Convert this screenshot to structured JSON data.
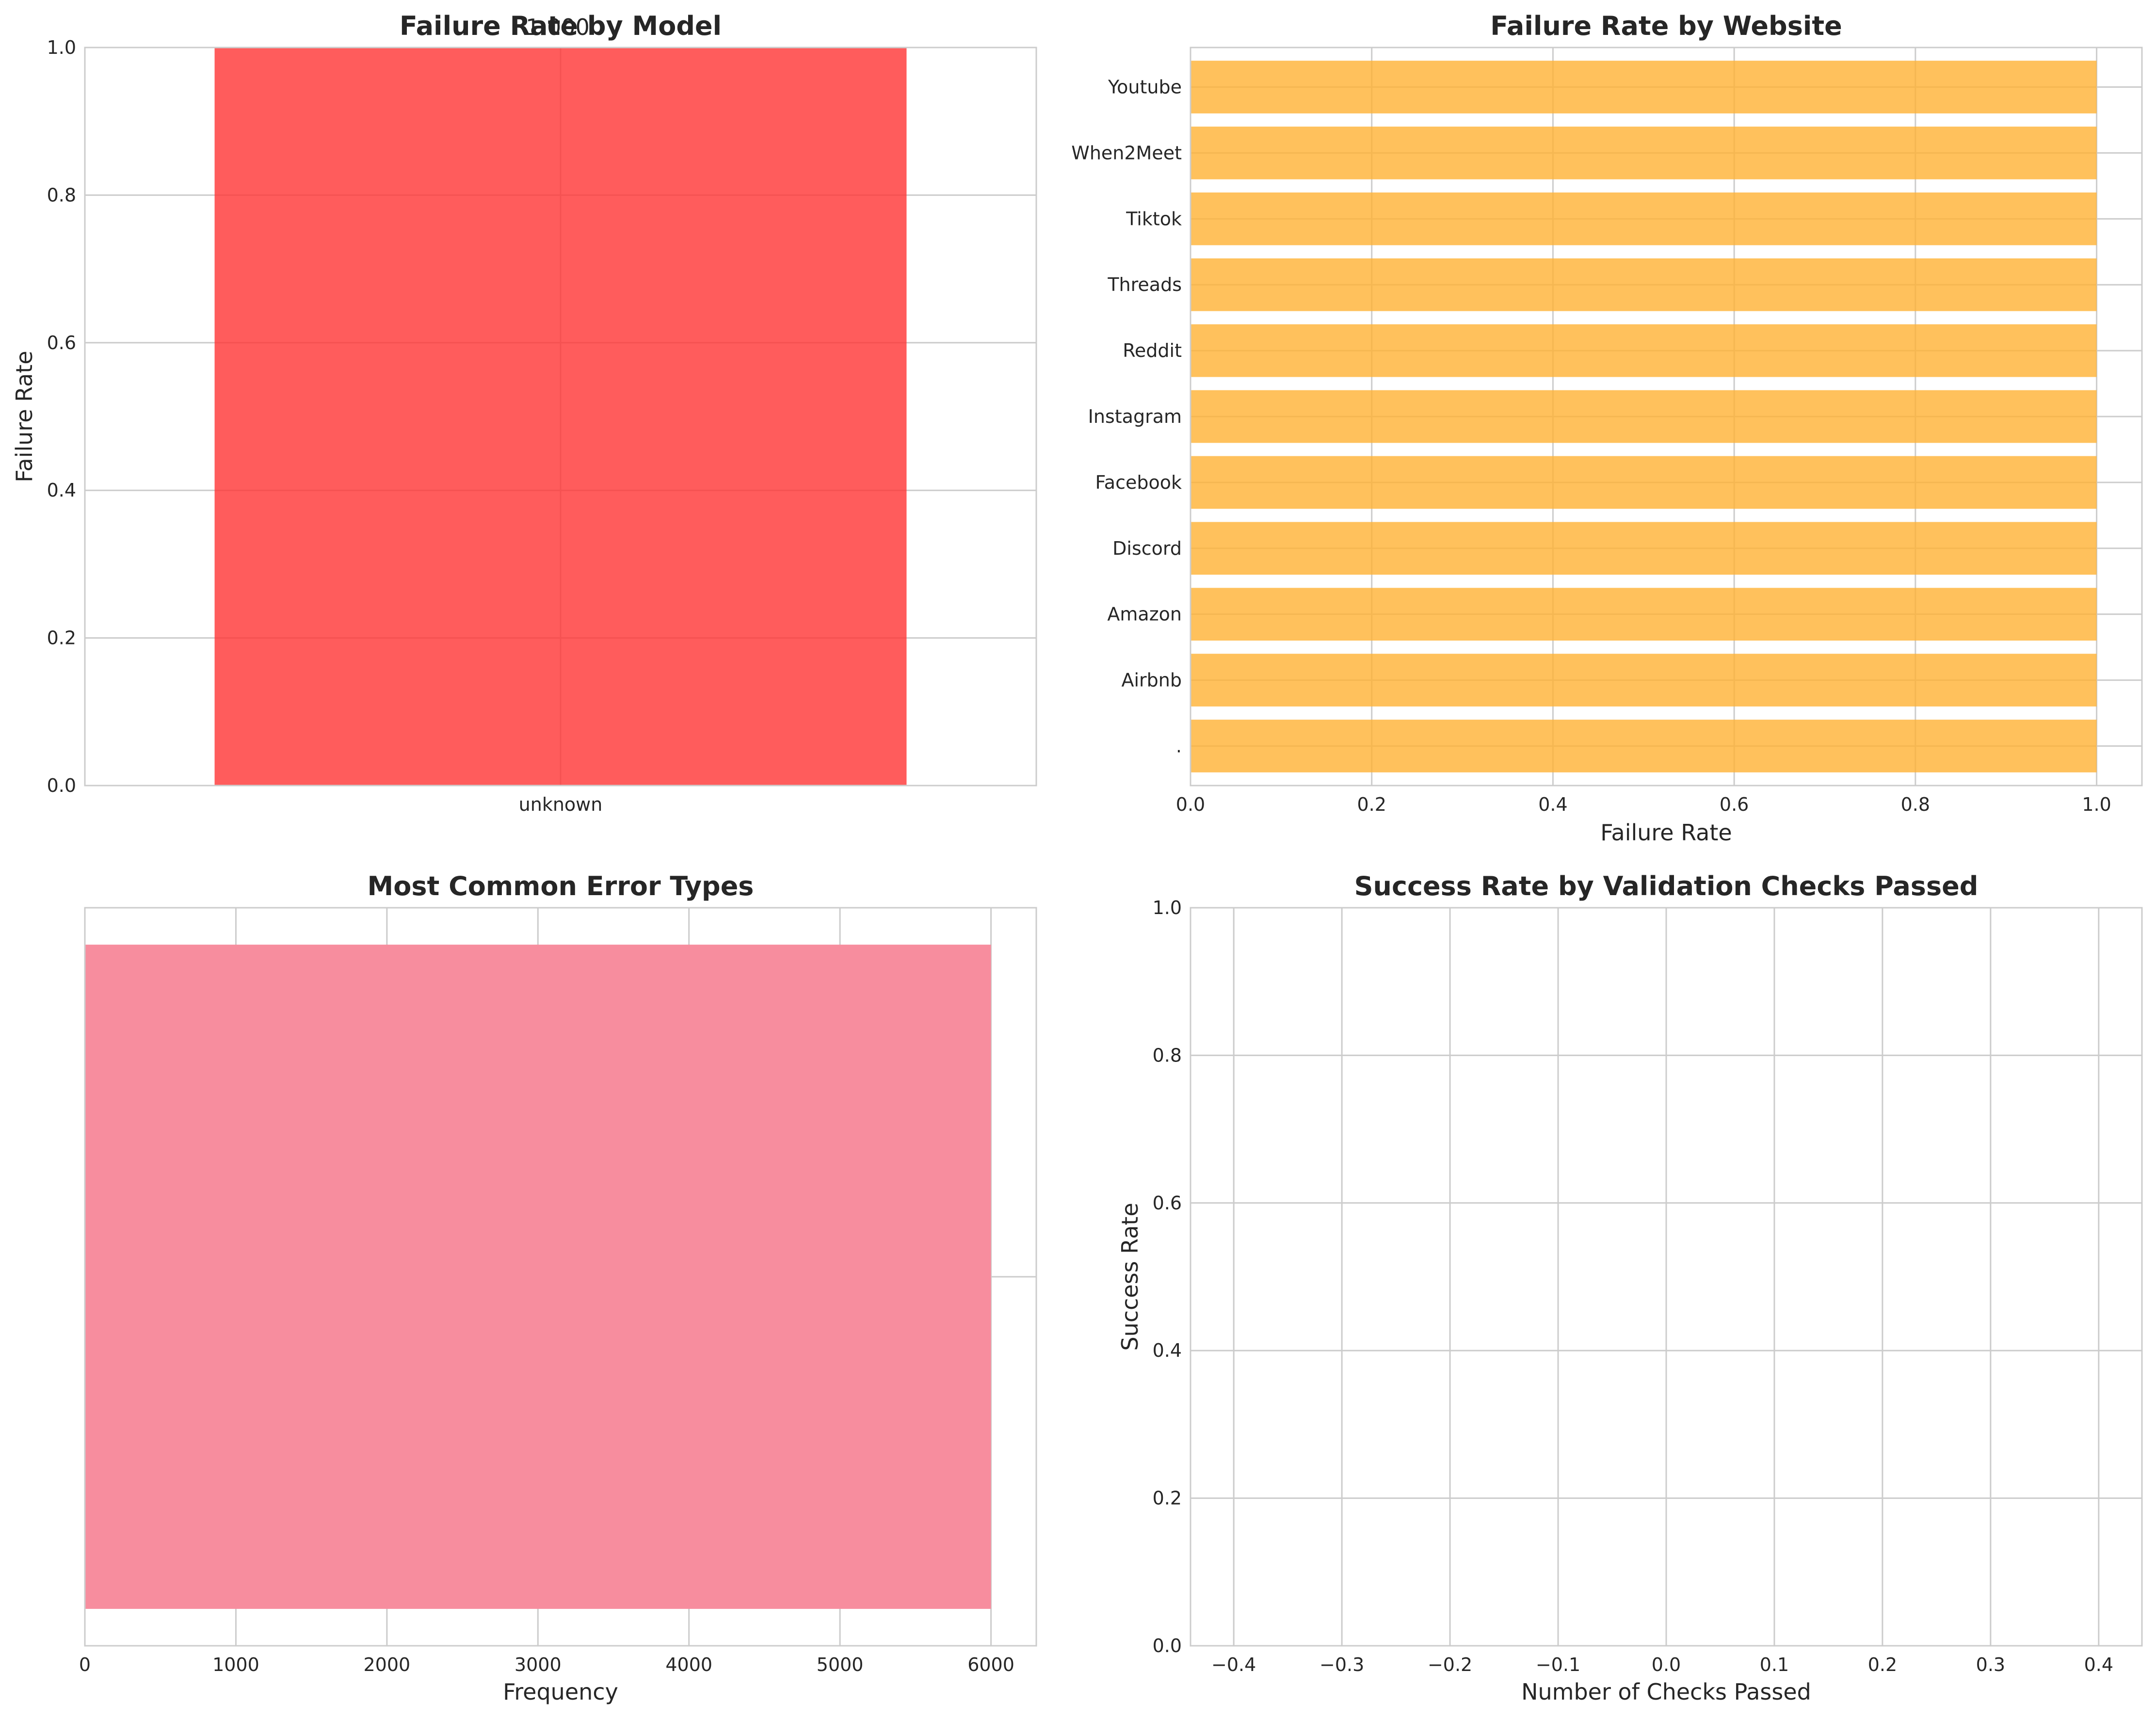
{
  "chart_data": [
    {
      "type": "bar",
      "title": "Failure Rate by Model",
      "xlabel": "",
      "ylabel": "Failure Rate",
      "categories": [
        "unknown"
      ],
      "values": [
        1.0
      ],
      "data_labels": [
        "1.000"
      ],
      "ylim": [
        0,
        1
      ],
      "yticks": [
        "0.0",
        "0.2",
        "0.4",
        "0.6",
        "0.8",
        "1.0"
      ],
      "color": "#ff3333",
      "grid": true
    },
    {
      "type": "bar",
      "orientation": "horizontal",
      "title": "Failure Rate by Website",
      "xlabel": "Failure Rate",
      "ylabel": "",
      "categories": [
        ".",
        "Airbnb",
        "Amazon",
        "Discord",
        "Facebook",
        "Instagram",
        "Reddit",
        "Threads",
        "Tiktok",
        "When2Meet",
        "Youtube"
      ],
      "values": [
        1.0,
        1.0,
        1.0,
        1.0,
        1.0,
        1.0,
        1.0,
        1.0,
        1.0,
        1.0,
        1.0
      ],
      "xlim": [
        0,
        1.05
      ],
      "xticks": [
        "0.0",
        "0.2",
        "0.4",
        "0.6",
        "0.8",
        "1.0"
      ],
      "color": "#ffb133",
      "grid": true
    },
    {
      "type": "bar",
      "orientation": "horizontal",
      "title": "Most Common Error Types",
      "xlabel": "Frequency",
      "ylabel": "",
      "categories": [
        ""
      ],
      "values": [
        6000
      ],
      "xlim": [
        0,
        6300
      ],
      "xticks": [
        "0",
        "1000",
        "2000",
        "3000",
        "4000",
        "5000",
        "6000"
      ],
      "color": "#f78d9e",
      "grid": true
    },
    {
      "type": "line",
      "title": "Success Rate by Validation Checks Passed",
      "xlabel": "Number of Checks Passed",
      "ylabel": "Success Rate",
      "x": [],
      "y": [],
      "xlim": [
        -0.44,
        0.44
      ],
      "ylim": [
        0,
        1
      ],
      "xticks": [
        "−0.4",
        "−0.3",
        "−0.2",
        "−0.1",
        "0.0",
        "0.1",
        "0.2",
        "0.3",
        "0.4"
      ],
      "yticks": [
        "0.0",
        "0.2",
        "0.4",
        "0.6",
        "0.8",
        "1.0"
      ],
      "grid": true
    }
  ]
}
